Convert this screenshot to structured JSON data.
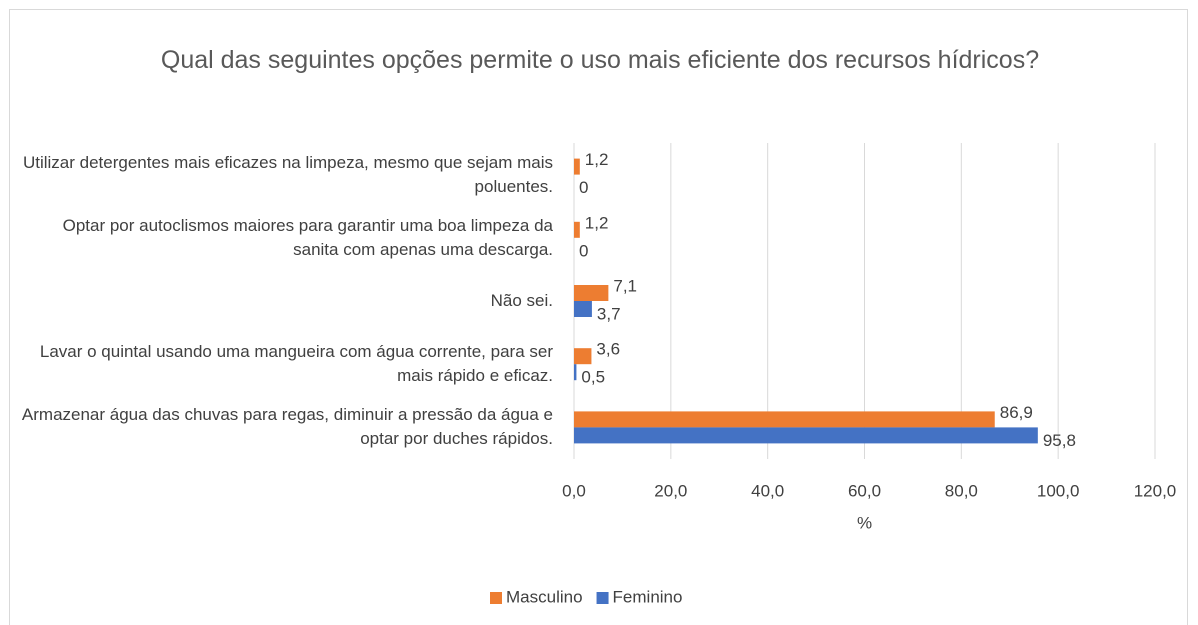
{
  "chart_data": {
    "type": "barh",
    "title": "Qual das seguintes opções permite o uso mais eficiente dos recursos hídricos?",
    "xlabel": "%",
    "categories": [
      "Utilizar detergentes mais eficazes na limpeza, mesmo que sejam mais poluentes.",
      "Optar por autoclismos maiores para garantir uma boa limpeza da sanita com apenas uma descarga.",
      "Não sei.",
      "Lavar o quintal usando uma mangueira com água corrente, para ser mais rápido e eficaz.",
      "Armazenar água das chuvas para regas, diminuir a pressão da água e optar por duches rápidos."
    ],
    "series": [
      {
        "name": "Masculino",
        "color": "#ed7d31",
        "values": [
          1.2,
          1.2,
          7.1,
          3.6,
          86.9
        ],
        "value_labels": [
          "1,2",
          "1,2",
          "7,1",
          "3,6",
          "86,9"
        ]
      },
      {
        "name": "Feminino",
        "color": "#4472c4",
        "values": [
          0,
          0,
          3.7,
          0.5,
          95.8
        ],
        "value_labels": [
          "0",
          "0",
          "3,7",
          "0,5",
          "95,8"
        ]
      }
    ],
    "xlim": [
      0,
      120
    ],
    "xticks": [
      {
        "value": 0,
        "label": "0,0"
      },
      {
        "value": 20,
        "label": "20,0"
      },
      {
        "value": 40,
        "label": "40,0"
      },
      {
        "value": 60,
        "label": "60,0"
      },
      {
        "value": 80,
        "label": "80,0"
      },
      {
        "value": 100,
        "label": "100,0"
      },
      {
        "value": 120,
        "label": "120,0"
      }
    ],
    "grid": true,
    "legend": "bottom"
  }
}
